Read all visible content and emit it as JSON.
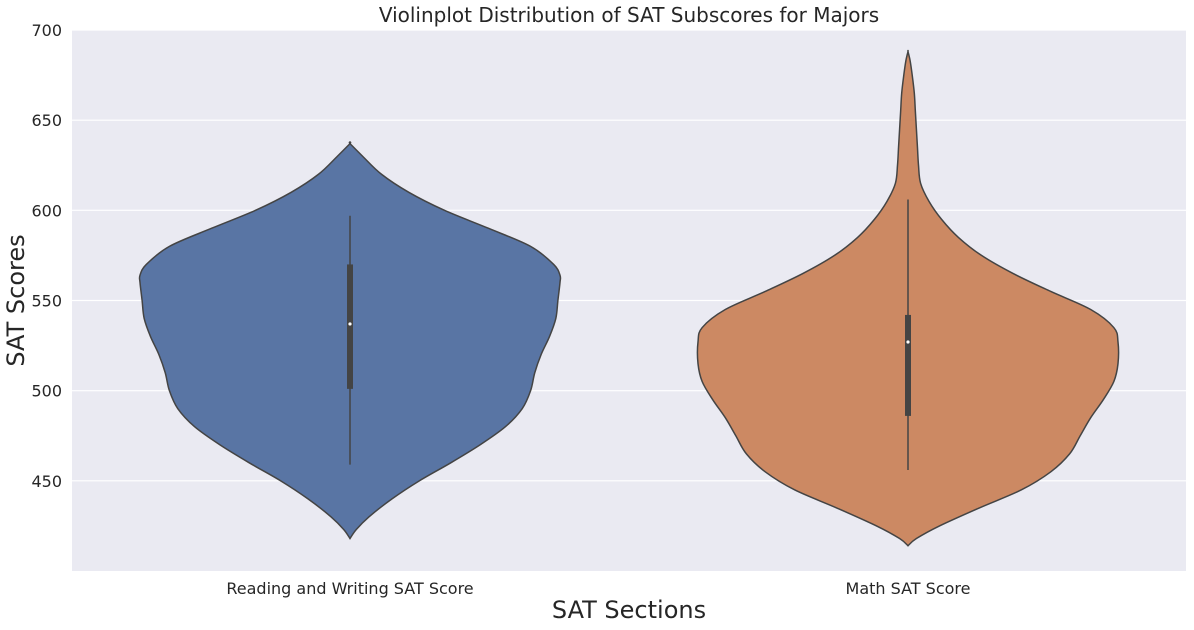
{
  "chart_data": {
    "type": "violin",
    "title": "Violinplot Distribution of SAT Subscores for Majors",
    "xlabel": "SAT Sections",
    "ylabel": "SAT Scores",
    "ylim": [
      400,
      700
    ],
    "yticks": [
      450,
      500,
      550,
      600,
      650,
      700
    ],
    "grid": true,
    "categories": [
      "Reading and Writing SAT Score",
      "Math SAT Score"
    ],
    "series": [
      {
        "color": "#5975a4",
        "min": 418,
        "max": 637,
        "whisker_low": 459,
        "whisker_high": 597,
        "q1": 501,
        "median": 537,
        "q3": 570,
        "density": [
          [
            418,
            0.0
          ],
          [
            423,
            0.03
          ],
          [
            430,
            0.09
          ],
          [
            440,
            0.2
          ],
          [
            450,
            0.33
          ],
          [
            460,
            0.48
          ],
          [
            470,
            0.62
          ],
          [
            480,
            0.74
          ],
          [
            490,
            0.82
          ],
          [
            500,
            0.86
          ],
          [
            510,
            0.88
          ],
          [
            520,
            0.91
          ],
          [
            530,
            0.95
          ],
          [
            540,
            0.98
          ],
          [
            550,
            0.99
          ],
          [
            560,
            1.0
          ],
          [
            564,
            1.0
          ],
          [
            570,
            0.97
          ],
          [
            580,
            0.86
          ],
          [
            590,
            0.66
          ],
          [
            600,
            0.45
          ],
          [
            610,
            0.28
          ],
          [
            620,
            0.15
          ],
          [
            630,
            0.06
          ],
          [
            637,
            0.0
          ]
        ]
      },
      {
        "color": "#cc8963",
        "min": 414,
        "max": 688,
        "whisker_low": 456,
        "whisker_high": 606,
        "q1": 486,
        "median": 527,
        "q3": 542,
        "density": [
          [
            414,
            0.0
          ],
          [
            418,
            0.04
          ],
          [
            425,
            0.15
          ],
          [
            435,
            0.34
          ],
          [
            445,
            0.54
          ],
          [
            455,
            0.68
          ],
          [
            465,
            0.77
          ],
          [
            475,
            0.82
          ],
          [
            485,
            0.87
          ],
          [
            495,
            0.93
          ],
          [
            505,
            0.98
          ],
          [
            515,
            1.0
          ],
          [
            527,
            1.0
          ],
          [
            535,
            0.98
          ],
          [
            545,
            0.87
          ],
          [
            555,
            0.68
          ],
          [
            565,
            0.5
          ],
          [
            575,
            0.35
          ],
          [
            585,
            0.24
          ],
          [
            595,
            0.16
          ],
          [
            605,
            0.1
          ],
          [
            615,
            0.06
          ],
          [
            625,
            0.05
          ],
          [
            635,
            0.045
          ],
          [
            645,
            0.04
          ],
          [
            655,
            0.035
          ],
          [
            665,
            0.03
          ],
          [
            675,
            0.02
          ],
          [
            683,
            0.01
          ],
          [
            688,
            0.0
          ]
        ]
      }
    ]
  }
}
